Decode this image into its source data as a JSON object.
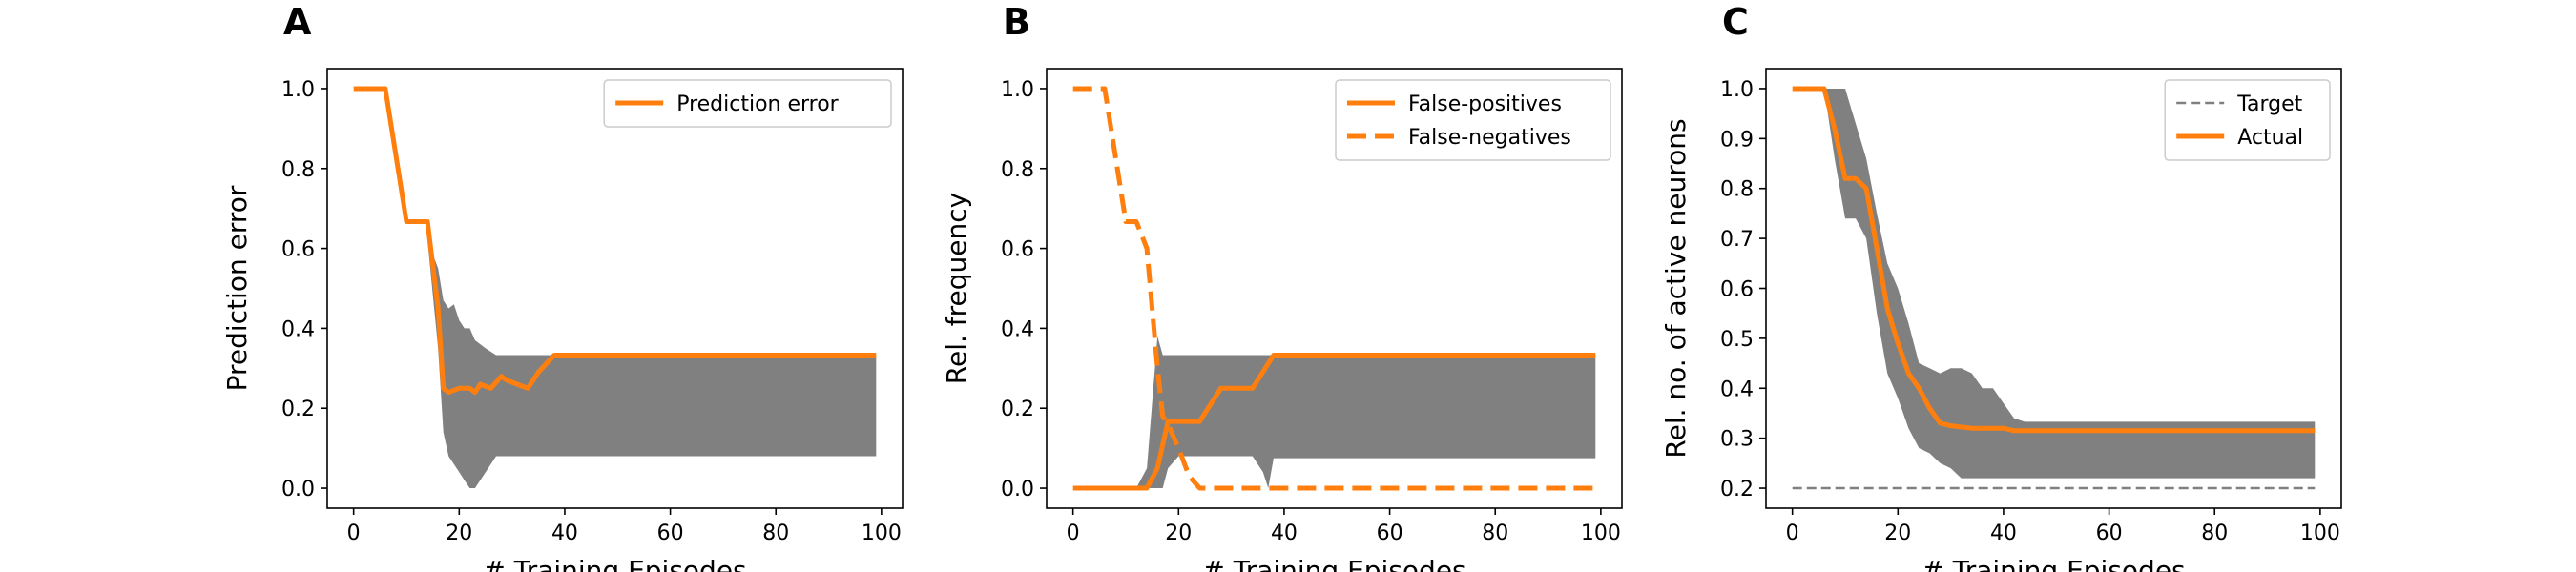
{
  "chart_data": [
    {
      "panel": "A",
      "type": "line",
      "xlabel": "# Training Episodes",
      "ylabel": "Prediction error",
      "xlim": [
        -5,
        104
      ],
      "ylim": [
        -0.05,
        1.05
      ],
      "xticks": [
        0,
        20,
        40,
        60,
        80,
        100
      ],
      "yticks": [
        "0.0",
        "0.2",
        "0.4",
        "0.6",
        "0.8",
        "1.0"
      ],
      "legend": "top-right",
      "series": [
        {
          "name": "Prediction error",
          "color": "#ff7f0e",
          "dash": "solid",
          "x": [
            0,
            6,
            10,
            14,
            16,
            17,
            18,
            20,
            22,
            23,
            24,
            26,
            28,
            29,
            31,
            33,
            35,
            38,
            40,
            60,
            80,
            99
          ],
          "y": [
            1.0,
            1.0,
            0.667,
            0.667,
            0.45,
            0.25,
            0.24,
            0.25,
            0.25,
            0.24,
            0.26,
            0.25,
            0.28,
            0.27,
            0.26,
            0.25,
            0.29,
            0.333,
            0.333,
            0.333,
            0.333,
            0.333
          ]
        }
      ],
      "band": {
        "color": "#808080",
        "x": [
          14,
          16,
          17,
          18,
          19,
          20,
          21,
          22,
          23,
          25,
          27,
          30,
          40,
          60,
          80,
          99
        ],
        "lower": [
          0.62,
          0.35,
          0.14,
          0.08,
          0.06,
          0.04,
          0.02,
          0.0,
          0.0,
          0.04,
          0.08,
          0.08,
          0.08,
          0.08,
          0.08,
          0.08
        ],
        "upper": [
          0.62,
          0.55,
          0.47,
          0.45,
          0.46,
          0.42,
          0.4,
          0.4,
          0.37,
          0.35,
          0.333,
          0.333,
          0.333,
          0.333,
          0.333,
          0.333
        ]
      }
    },
    {
      "panel": "B",
      "type": "line",
      "xlabel": "# Training Episodes",
      "ylabel": "Rel. frequency",
      "xlim": [
        -5,
        104
      ],
      "ylim": [
        -0.05,
        1.05
      ],
      "xticks": [
        0,
        20,
        40,
        60,
        80,
        100
      ],
      "yticks": [
        "0.0",
        "0.2",
        "0.4",
        "0.6",
        "0.8",
        "1.0"
      ],
      "legend": "top-right",
      "series": [
        {
          "name": "False-positives",
          "color": "#ff7f0e",
          "dash": "solid",
          "x": [
            0,
            14,
            16,
            18,
            20,
            24,
            28,
            34,
            38,
            60,
            80,
            99
          ],
          "y": [
            0.0,
            0.0,
            0.05,
            0.167,
            0.167,
            0.167,
            0.25,
            0.25,
            0.333,
            0.333,
            0.333,
            0.333
          ]
        },
        {
          "name": "False-negatives",
          "color": "#ff7f0e",
          "dash": "dashed",
          "x": [
            0,
            6,
            10,
            12,
            14,
            15,
            16,
            17,
            18,
            20,
            22,
            24,
            26,
            40,
            60,
            80,
            99
          ],
          "y": [
            1.0,
            1.0,
            0.667,
            0.667,
            0.6,
            0.45,
            0.3,
            0.18,
            0.16,
            0.1,
            0.03,
            0.0,
            0.0,
            0.0,
            0.0,
            0.0,
            0.0
          ]
        }
      ],
      "band": {
        "color": "#808080",
        "x": [
          12,
          14,
          16,
          17,
          18,
          20,
          22,
          26,
          30,
          34,
          36,
          37,
          38,
          40,
          60,
          80,
          99
        ],
        "lower": [
          0.0,
          0.0,
          0.0,
          0.0,
          0.05,
          0.08,
          0.08,
          0.08,
          0.08,
          0.08,
          0.04,
          0.0,
          0.075,
          0.075,
          0.075,
          0.075,
          0.075
        ],
        "upper": [
          0.0,
          0.05,
          0.38,
          0.333,
          0.333,
          0.333,
          0.333,
          0.333,
          0.333,
          0.333,
          0.333,
          0.333,
          0.333,
          0.333,
          0.333,
          0.333,
          0.333
        ]
      }
    },
    {
      "panel": "C",
      "type": "line",
      "xlabel": "# Training Episodes",
      "ylabel": "Rel. no. of active neurons",
      "xlim": [
        -5,
        104
      ],
      "ylim": [
        0.16,
        1.04
      ],
      "xticks": [
        0,
        20,
        40,
        60,
        80,
        100
      ],
      "yticks": [
        "0.2",
        "0.3",
        "0.4",
        "0.5",
        "0.6",
        "0.7",
        "0.8",
        "0.9",
        "1.0"
      ],
      "legend": "top-right",
      "series": [
        {
          "name": "Target",
          "color": "#808080",
          "dash": "dashed",
          "x": [
            0,
            99
          ],
          "y": [
            0.2,
            0.2
          ]
        },
        {
          "name": "Actual",
          "color": "#ff7f0e",
          "dash": "solid",
          "x": [
            0,
            6,
            8,
            10,
            12,
            14,
            16,
            18,
            20,
            22,
            24,
            26,
            28,
            30,
            34,
            36,
            40,
            42,
            60,
            80,
            99
          ],
          "y": [
            1.0,
            1.0,
            0.92,
            0.82,
            0.82,
            0.8,
            0.68,
            0.56,
            0.49,
            0.43,
            0.4,
            0.36,
            0.33,
            0.325,
            0.32,
            0.32,
            0.32,
            0.315,
            0.315,
            0.315,
            0.315
          ]
        }
      ],
      "band": {
        "color": "#808080",
        "x": [
          6,
          8,
          10,
          12,
          14,
          16,
          18,
          20,
          22,
          24,
          26,
          28,
          30,
          32,
          34,
          36,
          38,
          40,
          42,
          44,
          60,
          80,
          99
        ],
        "lower": [
          1.0,
          0.86,
          0.74,
          0.74,
          0.7,
          0.55,
          0.43,
          0.38,
          0.32,
          0.28,
          0.27,
          0.25,
          0.24,
          0.22,
          0.22,
          0.22,
          0.22,
          0.22,
          0.22,
          0.22,
          0.22,
          0.22,
          0.22
        ],
        "upper": [
          1.0,
          1.0,
          1.0,
          0.93,
          0.86,
          0.75,
          0.65,
          0.6,
          0.53,
          0.45,
          0.44,
          0.43,
          0.44,
          0.44,
          0.43,
          0.4,
          0.4,
          0.37,
          0.34,
          0.333,
          0.333,
          0.333,
          0.333
        ]
      }
    }
  ]
}
